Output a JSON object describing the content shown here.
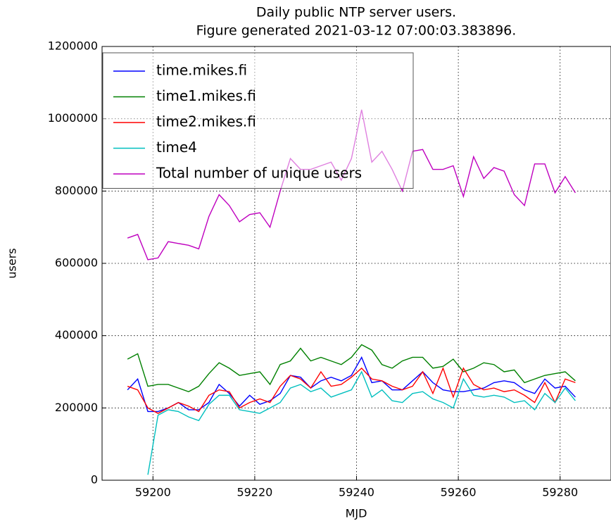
{
  "chart_data": {
    "type": "line",
    "title": "Daily public NTP server users.",
    "subtitle": "Figure generated 2021-03-12 07:00:03.383896.",
    "x_label": "MJD",
    "y_label": "users",
    "x": [
      59195,
      59197,
      59199,
      59201,
      59203,
      59205,
      59207,
      59209,
      59211,
      59213,
      59215,
      59217,
      59219,
      59221,
      59223,
      59225,
      59227,
      59229,
      59231,
      59233,
      59235,
      59237,
      59239,
      59241,
      59243,
      59245,
      59247,
      59249,
      59251,
      59253,
      59255,
      59257,
      59259,
      59261,
      59263,
      59265,
      59267,
      59269,
      59271,
      59273,
      59275,
      59277,
      59279,
      59281,
      59283
    ],
    "series": [
      {
        "name": "time.mikes.fi",
        "color": "#0000ff",
        "values": [
          250000,
          280000,
          190000,
          190000,
          200000,
          215000,
          195000,
          195000,
          215000,
          265000,
          240000,
          205000,
          235000,
          210000,
          220000,
          240000,
          290000,
          285000,
          255000,
          275000,
          285000,
          275000,
          290000,
          340000,
          270000,
          275000,
          250000,
          250000,
          275000,
          300000,
          270000,
          250000,
          245000,
          245000,
          250000,
          255000,
          270000,
          275000,
          270000,
          250000,
          240000,
          280000,
          255000,
          260000,
          230000
        ]
      },
      {
        "name": "time1.mikes.fi",
        "color": "#008000",
        "values": [
          335000,
          350000,
          260000,
          265000,
          265000,
          255000,
          245000,
          260000,
          295000,
          325000,
          310000,
          290000,
          295000,
          300000,
          265000,
          320000,
          330000,
          365000,
          330000,
          340000,
          330000,
          320000,
          340000,
          375000,
          360000,
          320000,
          310000,
          330000,
          340000,
          340000,
          310000,
          315000,
          335000,
          300000,
          310000,
          325000,
          320000,
          300000,
          305000,
          270000,
          280000,
          290000,
          295000,
          300000,
          275000
        ]
      },
      {
        "name": "time2.mikes.fi",
        "color": "#ff0000",
        "values": [
          260000,
          250000,
          200000,
          185000,
          200000,
          215000,
          205000,
          190000,
          235000,
          250000,
          245000,
          200000,
          215000,
          225000,
          215000,
          260000,
          290000,
          280000,
          255000,
          300000,
          260000,
          265000,
          285000,
          310000,
          280000,
          275000,
          260000,
          250000,
          260000,
          300000,
          240000,
          310000,
          230000,
          310000,
          265000,
          250000,
          255000,
          245000,
          250000,
          235000,
          215000,
          270000,
          215000,
          280000,
          270000
        ]
      },
      {
        "name": "time4",
        "color": "#00bfbf",
        "values": [
          null,
          null,
          15000,
          180000,
          195000,
          190000,
          175000,
          165000,
          210000,
          235000,
          235000,
          195000,
          190000,
          185000,
          200000,
          215000,
          255000,
          265000,
          245000,
          255000,
          230000,
          240000,
          250000,
          300000,
          230000,
          250000,
          220000,
          215000,
          240000,
          245000,
          225000,
          215000,
          200000,
          280000,
          235000,
          230000,
          235000,
          230000,
          215000,
          220000,
          195000,
          240000,
          215000,
          255000,
          220000
        ]
      },
      {
        "name": "Total number of unique users",
        "color": "#bf00bf",
        "values": [
          670000,
          680000,
          610000,
          615000,
          660000,
          655000,
          650000,
          640000,
          730000,
          790000,
          760000,
          715000,
          735000,
          740000,
          700000,
          800000,
          890000,
          860000,
          860000,
          870000,
          880000,
          830000,
          890000,
          1025000,
          880000,
          910000,
          860000,
          800000,
          910000,
          915000,
          860000,
          860000,
          870000,
          785000,
          895000,
          835000,
          865000,
          855000,
          790000,
          760000,
          875000,
          875000,
          795000,
          840000,
          795000
        ]
      }
    ],
    "xlim": [
      59190,
      59290
    ],
    "xticks": [
      59200,
      59220,
      59240,
      59260,
      59280
    ],
    "ylim": [
      0,
      1200000
    ],
    "yticks": [
      0,
      200000,
      400000,
      600000,
      800000,
      1000000,
      1200000
    ],
    "grid": true,
    "legend": "upper left"
  }
}
